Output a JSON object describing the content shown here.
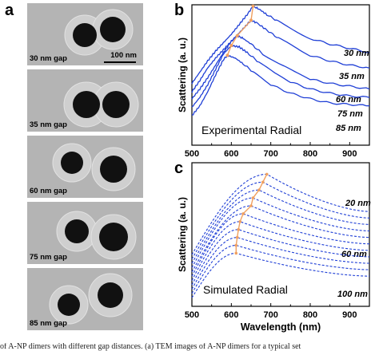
{
  "panel_labels": {
    "a": "a",
    "b": "b",
    "c": "c"
  },
  "tem": {
    "scale_bar": "100 nm",
    "tiles": [
      {
        "label": "30 nm gap"
      },
      {
        "label": "35 nm gap"
      },
      {
        "label": "60 nm gap"
      },
      {
        "label": "75 nm gap"
      },
      {
        "label": "85 nm gap"
      }
    ]
  },
  "caption_fragment": "of A-NP dimers with different gap distances. (a) TEM images of A-NP dimers for a typical set",
  "colors": {
    "spectrum": "#1f3fd6",
    "peak_marker": "#f0a060",
    "tem_background": "#b4b4b4"
  },
  "chart_data": [
    {
      "panel": "b",
      "type": "line",
      "title": "",
      "annotation": "Experimental Radial",
      "xlabel": "",
      "ylabel": "Scattering (a. u.)",
      "xlim": [
        500,
        950
      ],
      "xticks": [
        500,
        600,
        700,
        800,
        900
      ],
      "y_ticks": "none",
      "line_style": "solid",
      "peak_markers": true,
      "series": [
        {
          "name": "30 nm",
          "peak_x": 655,
          "x": [
            500,
            520,
            540,
            560,
            580,
            600,
            620,
            640,
            655,
            670,
            690,
            720,
            760,
            800,
            850,
            900,
            950
          ],
          "y": [
            0.44,
            0.52,
            0.6,
            0.67,
            0.73,
            0.79,
            0.86,
            0.93,
            0.99,
            0.97,
            0.93,
            0.88,
            0.82,
            0.76,
            0.72,
            0.69,
            0.66
          ]
        },
        {
          "name": "35 nm",
          "peak_x": 650,
          "x": [
            500,
            520,
            540,
            560,
            580,
            600,
            620,
            640,
            650,
            665,
            690,
            720,
            760,
            800,
            850,
            900,
            950
          ],
          "y": [
            0.38,
            0.46,
            0.55,
            0.62,
            0.68,
            0.74,
            0.8,
            0.86,
            0.89,
            0.87,
            0.82,
            0.76,
            0.7,
            0.64,
            0.6,
            0.57,
            0.55
          ]
        },
        {
          "name": "60 nm",
          "peak_x": 615,
          "x": [
            500,
            520,
            540,
            560,
            580,
            600,
            615,
            630,
            650,
            680,
            720,
            760,
            800,
            850,
            900,
            950
          ],
          "y": [
            0.33,
            0.4,
            0.48,
            0.57,
            0.66,
            0.74,
            0.78,
            0.76,
            0.72,
            0.65,
            0.58,
            0.52,
            0.47,
            0.44,
            0.42,
            0.4
          ]
        },
        {
          "name": "75 nm",
          "peak_x": 600,
          "x": [
            500,
            520,
            540,
            560,
            580,
            600,
            620,
            640,
            670,
            710,
            750,
            800,
            850,
            900,
            950
          ],
          "y": [
            0.27,
            0.34,
            0.43,
            0.54,
            0.65,
            0.71,
            0.7,
            0.66,
            0.59,
            0.51,
            0.45,
            0.4,
            0.37,
            0.35,
            0.34
          ]
        },
        {
          "name": "85 nm",
          "peak_x": 590,
          "x": [
            500,
            520,
            540,
            560,
            580,
            590,
            610,
            630,
            660,
            700,
            750,
            800,
            850,
            900,
            950
          ],
          "y": [
            0.21,
            0.28,
            0.38,
            0.5,
            0.61,
            0.64,
            0.62,
            0.58,
            0.51,
            0.43,
            0.37,
            0.33,
            0.3,
            0.29,
            0.28
          ]
        }
      ]
    },
    {
      "panel": "c",
      "type": "line",
      "title": "",
      "annotation": "Simulated Radial",
      "xlabel": "Wavelength (nm)",
      "ylabel": "Scattering (a. u.)",
      "xlim": [
        500,
        950
      ],
      "xticks": [
        500,
        600,
        700,
        800,
        900
      ],
      "y_ticks": "none",
      "line_style": "dashed",
      "peak_markers": true,
      "series": [
        {
          "name": "20 nm",
          "peak_x": 690
        },
        {
          "name": "",
          "peak_x": 680
        },
        {
          "name": "",
          "peak_x": 670
        },
        {
          "name": "",
          "peak_x": 655
        },
        {
          "name": "",
          "peak_x": 650
        },
        {
          "name": "",
          "peak_x": 630
        },
        {
          "name": "60 nm",
          "peak_x": 622
        },
        {
          "name": "",
          "peak_x": 618
        },
        {
          "name": "",
          "peak_x": 615
        },
        {
          "name": "",
          "peak_x": 612
        },
        {
          "name": "100 nm",
          "peak_x": 612
        }
      ]
    }
  ]
}
